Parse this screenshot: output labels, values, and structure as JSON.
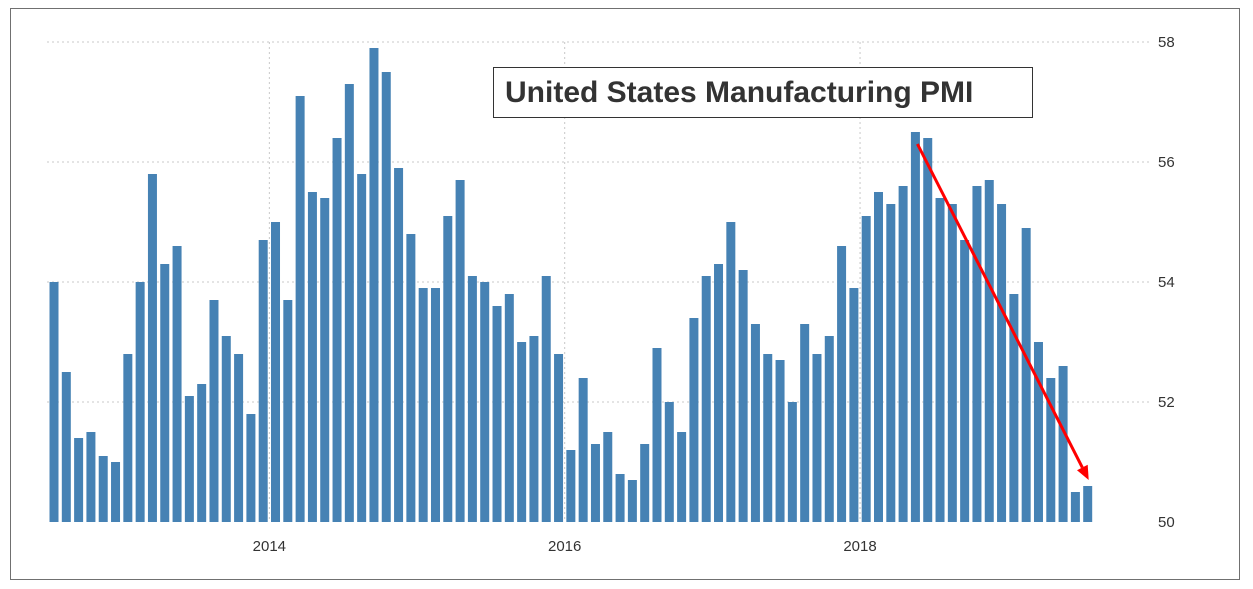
{
  "chart_data": {
    "type": "bar",
    "title": "United States Manufacturing PMI",
    "xlabel": "",
    "ylabel": "",
    "ylim": [
      50,
      58
    ],
    "y_ticks": [
      "50",
      "52",
      "54",
      "56",
      "58"
    ],
    "y_axis_side": "right",
    "x_ticks": [
      "2014",
      "2016",
      "2018"
    ],
    "grid": true,
    "bar_color": "#4682b4",
    "annotation_arrow": {
      "color": "#ff0000",
      "from": [
        "2018-05",
        56.3
      ],
      "to": [
        "2019-07",
        50.7
      ]
    },
    "categories": [
      "2012-07",
      "2012-08",
      "2012-09",
      "2012-10",
      "2012-11",
      "2012-12",
      "2013-01",
      "2013-02",
      "2013-03",
      "2013-04",
      "2013-05",
      "2013-06",
      "2013-07",
      "2013-08",
      "2013-09",
      "2013-10",
      "2013-11",
      "2013-12",
      "2014-01",
      "2014-02",
      "2014-03",
      "2014-04",
      "2014-05",
      "2014-06",
      "2014-07",
      "2014-08",
      "2014-09",
      "2014-10",
      "2014-11",
      "2014-12",
      "2015-01",
      "2015-02",
      "2015-03",
      "2015-04",
      "2015-05",
      "2015-06",
      "2015-07",
      "2015-08",
      "2015-09",
      "2015-10",
      "2015-11",
      "2015-12",
      "2016-01",
      "2016-02",
      "2016-03",
      "2016-04",
      "2016-05",
      "2016-06",
      "2016-07",
      "2016-08",
      "2016-09",
      "2016-10",
      "2016-11",
      "2016-12",
      "2017-01",
      "2017-02",
      "2017-03",
      "2017-04",
      "2017-05",
      "2017-06",
      "2017-07",
      "2017-08",
      "2017-09",
      "2017-10",
      "2017-11",
      "2017-12",
      "2018-01",
      "2018-02",
      "2018-03",
      "2018-04",
      "2018-05",
      "2018-06",
      "2018-07",
      "2018-08",
      "2018-09",
      "2018-10",
      "2018-11",
      "2018-12",
      "2019-01",
      "2019-02",
      "2019-03",
      "2019-04",
      "2019-05",
      "2019-06",
      "2019-07"
    ],
    "values": [
      54.0,
      52.5,
      51.4,
      51.5,
      51.1,
      51.0,
      52.8,
      54.0,
      55.8,
      54.3,
      54.6,
      52.1,
      52.3,
      53.7,
      53.1,
      52.8,
      51.8,
      54.7,
      55.0,
      53.7,
      57.1,
      55.5,
      55.4,
      56.4,
      57.3,
      55.8,
      57.9,
      57.5,
      55.9,
      54.8,
      53.9,
      53.9,
      55.1,
      55.7,
      54.1,
      54.0,
      53.6,
      53.8,
      53.0,
      53.1,
      54.1,
      52.8,
      51.2,
      52.4,
      51.3,
      51.5,
      50.8,
      50.7,
      51.3,
      52.9,
      52.0,
      51.5,
      53.4,
      54.1,
      54.3,
      55.0,
      54.2,
      53.3,
      52.8,
      52.7,
      52.0,
      53.3,
      52.8,
      53.1,
      54.6,
      53.9,
      55.1,
      55.5,
      55.3,
      55.6,
      56.5,
      56.4,
      55.4,
      55.3,
      54.7,
      55.6,
      55.7,
      55.3,
      53.8,
      54.9,
      53.0,
      52.4,
      52.6,
      50.5,
      50.6
    ]
  }
}
